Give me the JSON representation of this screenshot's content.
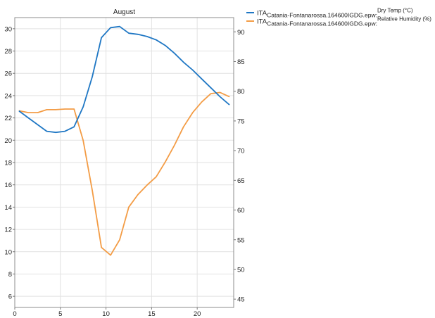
{
  "chart_data": {
    "type": "line",
    "title": "August",
    "xlim": [
      0,
      24
    ],
    "x_ticks": [
      0,
      5,
      10,
      15,
      20
    ],
    "y_left_lim": [
      5,
      31
    ],
    "y_left_ticks": [
      6,
      8,
      10,
      12,
      14,
      16,
      18,
      20,
      22,
      24,
      26,
      28,
      30
    ],
    "y_right_lim": [
      43.6,
      92.4
    ],
    "y_right_ticks": [
      45,
      50,
      55,
      60,
      65,
      70,
      75,
      80,
      85,
      90
    ],
    "grid": true,
    "legend_position": "outside-right-top",
    "x": [
      0.5,
      1.5,
      2.5,
      3.5,
      4.5,
      5.5,
      6.5,
      7.5,
      8.5,
      9.5,
      10.5,
      11.5,
      12.5,
      13.5,
      14.5,
      15.5,
      16.5,
      17.5,
      18.5,
      19.5,
      20.5,
      21.5,
      22.5,
      23.5
    ],
    "series": [
      {
        "name_main": "ITA",
        "name_sub": "Catania-Fontanarossa.164600IGDG.epw:",
        "name_sup": "Dry Temp (°C)",
        "axis": "left",
        "color": "#1f77c4",
        "values": [
          22.6,
          22.0,
          21.4,
          20.8,
          20.7,
          20.8,
          21.2,
          23.0,
          25.7,
          29.2,
          30.1,
          30.2,
          29.6,
          29.5,
          29.3,
          29.0,
          28.5,
          27.8,
          27.0,
          26.3,
          25.5,
          24.7,
          23.9,
          23.2
        ]
      },
      {
        "name_main": "ITA",
        "name_sub": "Catania-Fontanarossa.164600IGDG.epw:",
        "name_sup": "Relative Humidity (%)",
        "axis": "right",
        "color": "#f39c45",
        "values": [
          76.7,
          76.4,
          76.4,
          76.9,
          76.9,
          77.0,
          77.0,
          71.7,
          63.3,
          53.7,
          52.4,
          55.0,
          60.5,
          62.6,
          64.2,
          65.6,
          68.1,
          70.9,
          74.0,
          76.4,
          78.2,
          79.6,
          79.8,
          79.1
        ]
      }
    ]
  }
}
